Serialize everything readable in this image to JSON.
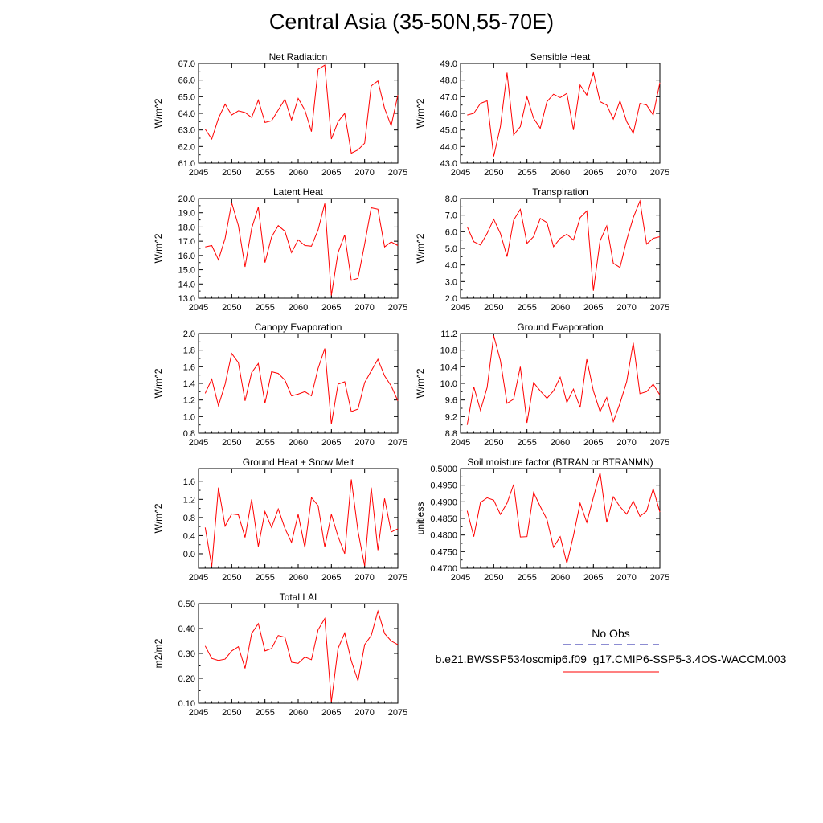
{
  "title": "Central Asia (35-50N,55-70E)",
  "legend": {
    "obs_label": "No Obs",
    "obs_color": "#1a1aa6",
    "model_label": "b.e21.BWSSP534oscmip6.f09_g17.CMIP6-SSP5-3.4OS-WACCM.003",
    "model_color": "#ff0000"
  },
  "chart_data": [
    {
      "type": "line",
      "title": "Net Radiation",
      "ylabel": "W/m^2",
      "xlim": [
        2045,
        2075
      ],
      "ylim": [
        61.0,
        67.0
      ],
      "yticks": [
        "61.0",
        "62.0",
        "63.0",
        "64.0",
        "65.0",
        "66.0",
        "67.0"
      ],
      "xticks": [
        "2045",
        "2050",
        "2055",
        "2060",
        "2065",
        "2070",
        "2075"
      ],
      "x": [
        2046,
        2047,
        2048,
        2049,
        2050,
        2051,
        2052,
        2053,
        2054,
        2055,
        2056,
        2057,
        2058,
        2059,
        2060,
        2061,
        2062,
        2063,
        2064,
        2065,
        2066,
        2067,
        2068,
        2069,
        2070,
        2071,
        2072,
        2073,
        2074,
        2075
      ],
      "series": [
        {
          "values": [
            63.05,
            62.45,
            63.7,
            64.55,
            63.9,
            64.15,
            64.05,
            63.75,
            64.8,
            63.45,
            63.55,
            64.2,
            64.85,
            63.6,
            64.9,
            64.2,
            62.9,
            66.65,
            66.9,
            62.45,
            63.5,
            64.0,
            61.6,
            61.8,
            62.2,
            65.65,
            65.95,
            64.3,
            63.25,
            65.1
          ]
        }
      ]
    },
    {
      "type": "line",
      "title": "Sensible Heat",
      "ylabel": "W/m^2",
      "xlim": [
        2045,
        2075
      ],
      "ylim": [
        43.0,
        49.0
      ],
      "yticks": [
        "43.0",
        "44.0",
        "45.0",
        "46.0",
        "47.0",
        "48.0",
        "49.0"
      ],
      "xticks": [
        "2045",
        "2050",
        "2055",
        "2060",
        "2065",
        "2070",
        "2075"
      ],
      "x": [
        2046,
        2047,
        2048,
        2049,
        2050,
        2051,
        2052,
        2053,
        2054,
        2055,
        2056,
        2057,
        2058,
        2059,
        2060,
        2061,
        2062,
        2063,
        2064,
        2065,
        2066,
        2067,
        2068,
        2069,
        2070,
        2071,
        2072,
        2073,
        2074,
        2075
      ],
      "series": [
        {
          "values": [
            45.9,
            46.0,
            46.6,
            46.75,
            43.4,
            45.2,
            48.45,
            44.7,
            45.2,
            47.0,
            45.7,
            45.1,
            46.7,
            47.15,
            46.95,
            47.2,
            45.0,
            47.7,
            47.1,
            48.45,
            46.7,
            46.5,
            45.65,
            46.75,
            45.5,
            44.8,
            46.6,
            46.5,
            45.9,
            47.85
          ]
        }
      ]
    },
    {
      "type": "line",
      "title": "Latent Heat",
      "ylabel": "W/m^2",
      "xlim": [
        2045,
        2075
      ],
      "ylim": [
        13.0,
        20.0
      ],
      "yticks": [
        "13.0",
        "14.0",
        "15.0",
        "16.0",
        "17.0",
        "18.0",
        "19.0",
        "20.0"
      ],
      "xticks": [
        "2045",
        "2050",
        "2055",
        "2060",
        "2065",
        "2070",
        "2075"
      ],
      "x": [
        2046,
        2047,
        2048,
        2049,
        2050,
        2051,
        2052,
        2053,
        2054,
        2055,
        2056,
        2057,
        2058,
        2059,
        2060,
        2061,
        2062,
        2063,
        2064,
        2065,
        2066,
        2067,
        2068,
        2069,
        2070,
        2071,
        2072,
        2073,
        2074,
        2075
      ],
      "series": [
        {
          "values": [
            16.6,
            16.7,
            15.7,
            17.2,
            19.7,
            18.1,
            15.2,
            17.9,
            19.4,
            15.5,
            17.3,
            18.1,
            17.7,
            16.2,
            17.1,
            16.7,
            16.65,
            17.8,
            19.65,
            13.2,
            16.2,
            17.45,
            14.25,
            14.4,
            16.8,
            19.35,
            19.25,
            16.6,
            16.95,
            16.7
          ]
        }
      ]
    },
    {
      "type": "line",
      "title": "Transpiration",
      "ylabel": "W/m^2",
      "xlim": [
        2045,
        2075
      ],
      "ylim": [
        2.0,
        8.0
      ],
      "yticks": [
        "2.0",
        "3.0",
        "4.0",
        "5.0",
        "6.0",
        "7.0",
        "8.0"
      ],
      "xticks": [
        "2045",
        "2050",
        "2055",
        "2060",
        "2065",
        "2070",
        "2075"
      ],
      "x": [
        2046,
        2047,
        2048,
        2049,
        2050,
        2051,
        2052,
        2053,
        2054,
        2055,
        2056,
        2057,
        2058,
        2059,
        2060,
        2061,
        2062,
        2063,
        2064,
        2065,
        2066,
        2067,
        2068,
        2069,
        2070,
        2071,
        2072,
        2073,
        2074,
        2075
      ],
      "series": [
        {
          "values": [
            6.3,
            5.4,
            5.2,
            5.9,
            6.75,
            5.9,
            4.5,
            6.7,
            7.35,
            5.3,
            5.7,
            6.8,
            6.55,
            5.1,
            5.6,
            5.85,
            5.5,
            6.85,
            7.25,
            2.45,
            5.45,
            6.35,
            4.1,
            3.85,
            5.5,
            6.85,
            7.85,
            5.25,
            5.6,
            5.7
          ]
        }
      ]
    },
    {
      "type": "line",
      "title": "Canopy Evaporation",
      "ylabel": "W/m^2",
      "xlim": [
        2045,
        2075
      ],
      "ylim": [
        0.8,
        2.0
      ],
      "yticks": [
        "0.8",
        "1.0",
        "1.2",
        "1.4",
        "1.6",
        "1.8",
        "2.0"
      ],
      "xticks": [
        "2045",
        "2050",
        "2055",
        "2060",
        "2065",
        "2070",
        "2075"
      ],
      "x": [
        2046,
        2047,
        2048,
        2049,
        2050,
        2051,
        2052,
        2053,
        2054,
        2055,
        2056,
        2057,
        2058,
        2059,
        2060,
        2061,
        2062,
        2063,
        2064,
        2065,
        2066,
        2067,
        2068,
        2069,
        2070,
        2071,
        2072,
        2073,
        2074,
        2075
      ],
      "series": [
        {
          "values": [
            1.28,
            1.45,
            1.13,
            1.39,
            1.76,
            1.65,
            1.19,
            1.53,
            1.64,
            1.16,
            1.54,
            1.52,
            1.44,
            1.25,
            1.27,
            1.3,
            1.25,
            1.58,
            1.82,
            0.91,
            1.39,
            1.42,
            1.06,
            1.09,
            1.41,
            1.55,
            1.69,
            1.49,
            1.37,
            1.19
          ]
        }
      ]
    },
    {
      "type": "line",
      "title": "Ground Evaporation",
      "ylabel": "W/m^2",
      "xlim": [
        2045,
        2075
      ],
      "ylim": [
        8.8,
        11.2
      ],
      "yticks": [
        "8.8",
        "9.2",
        "9.6",
        "10.0",
        "10.4",
        "10.8",
        "11.2"
      ],
      "xticks": [
        "2045",
        "2050",
        "2055",
        "2060",
        "2065",
        "2070",
        "2075"
      ],
      "x": [
        2046,
        2047,
        2048,
        2049,
        2050,
        2051,
        2052,
        2053,
        2054,
        2055,
        2056,
        2057,
        2058,
        2059,
        2060,
        2061,
        2062,
        2063,
        2064,
        2065,
        2066,
        2067,
        2068,
        2069,
        2070,
        2071,
        2072,
        2073,
        2074,
        2075
      ],
      "series": [
        {
          "values": [
            9.0,
            9.92,
            9.35,
            9.9,
            11.15,
            10.55,
            9.52,
            9.62,
            10.4,
            9.05,
            10.02,
            9.82,
            9.64,
            9.82,
            10.15,
            9.54,
            9.86,
            9.42,
            10.58,
            9.82,
            9.32,
            9.66,
            9.08,
            9.52,
            10.04,
            10.98,
            9.75,
            9.8,
            9.98,
            9.72
          ]
        }
      ]
    },
    {
      "type": "line",
      "title": "Ground Heat + Snow Melt",
      "ylabel": "W/m^2",
      "xlim": [
        2045,
        2075
      ],
      "ylim": [
        -0.32,
        1.88
      ],
      "yticks": [
        "0.0",
        "0.4",
        "0.8",
        "1.2",
        "1.6"
      ],
      "ytick_values": [
        0.0,
        0.4,
        0.8,
        1.2,
        1.6
      ],
      "xticks": [
        "2045",
        "2050",
        "2055",
        "2060",
        "2065",
        "2070",
        "2075"
      ],
      "x": [
        2046,
        2047,
        2048,
        2049,
        2050,
        2051,
        2052,
        2053,
        2054,
        2055,
        2056,
        2057,
        2058,
        2059,
        2060,
        2061,
        2062,
        2063,
        2064,
        2065,
        2066,
        2067,
        2068,
        2069,
        2070,
        2071,
        2072,
        2073,
        2074,
        2075
      ],
      "series": [
        {
          "values": [
            0.58,
            -0.28,
            1.46,
            0.61,
            0.88,
            0.86,
            0.36,
            1.2,
            0.16,
            0.93,
            0.58,
            0.99,
            0.56,
            0.25,
            0.87,
            0.14,
            1.24,
            1.06,
            0.15,
            0.87,
            0.38,
            0.0,
            1.64,
            0.5,
            -0.27,
            1.46,
            0.08,
            1.22,
            0.48,
            0.55
          ]
        }
      ]
    },
    {
      "type": "line",
      "title": "Soil moisture factor (BTRAN or BTRANMN)",
      "ylabel": "unitless",
      "xlim": [
        2045,
        2075
      ],
      "ylim": [
        0.47,
        0.5
      ],
      "yticks": [
        "0.4700",
        "0.4750",
        "0.4800",
        "0.4850",
        "0.4900",
        "0.4950",
        "0.5000"
      ],
      "xticks": [
        "2045",
        "2050",
        "2055",
        "2060",
        "2065",
        "2070",
        "2075"
      ],
      "x": [
        2046,
        2047,
        2048,
        2049,
        2050,
        2051,
        2052,
        2053,
        2054,
        2055,
        2056,
        2057,
        2058,
        2059,
        2060,
        2061,
        2062,
        2063,
        2064,
        2065,
        2066,
        2067,
        2068,
        2069,
        2070,
        2071,
        2072,
        2073,
        2074,
        2075
      ],
      "series": [
        {
          "values": [
            0.4873,
            0.4795,
            0.4898,
            0.4912,
            0.4905,
            0.4862,
            0.4896,
            0.4952,
            0.4794,
            0.4795,
            0.4928,
            0.4886,
            0.4847,
            0.4763,
            0.4795,
            0.4715,
            0.4798,
            0.4896,
            0.4838,
            0.4913,
            0.4988,
            0.4838,
            0.4915,
            0.4885,
            0.4863,
            0.4902,
            0.4856,
            0.4872,
            0.4939,
            0.4869
          ]
        }
      ]
    },
    {
      "type": "line",
      "title": "Total LAI",
      "ylabel": "m2/m2",
      "xlim": [
        2045,
        2075
      ],
      "ylim": [
        0.1,
        0.5
      ],
      "yticks": [
        "0.10",
        "0.20",
        "0.30",
        "0.40",
        "0.50"
      ],
      "xticks": [
        "2045",
        "2050",
        "2055",
        "2060",
        "2065",
        "2070",
        "2075"
      ],
      "x": [
        2046,
        2047,
        2048,
        2049,
        2050,
        2051,
        2052,
        2053,
        2054,
        2055,
        2056,
        2057,
        2058,
        2059,
        2060,
        2061,
        2062,
        2063,
        2064,
        2065,
        2066,
        2067,
        2068,
        2069,
        2070,
        2071,
        2072,
        2073,
        2074,
        2075
      ],
      "series": [
        {
          "values": [
            0.33,
            0.28,
            0.272,
            0.277,
            0.31,
            0.327,
            0.24,
            0.38,
            0.42,
            0.31,
            0.32,
            0.372,
            0.365,
            0.265,
            0.26,
            0.285,
            0.275,
            0.395,
            0.44,
            0.105,
            0.32,
            0.382,
            0.27,
            0.19,
            0.335,
            0.372,
            0.47,
            0.38,
            0.35,
            0.335
          ]
        }
      ]
    }
  ]
}
